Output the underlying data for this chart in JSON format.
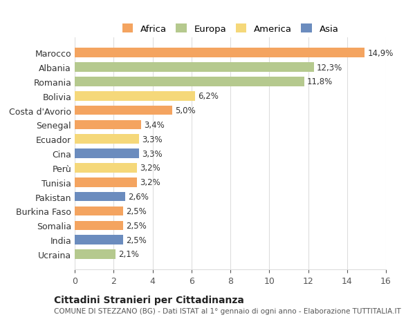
{
  "countries": [
    "Marocco",
    "Albania",
    "Romania",
    "Bolivia",
    "Costa d'Avorio",
    "Senegal",
    "Ecuador",
    "Cina",
    "Perù",
    "Tunisia",
    "Pakistan",
    "Burkina Faso",
    "Somalia",
    "India",
    "Ucraina"
  ],
  "values": [
    14.9,
    12.3,
    11.8,
    6.2,
    5.0,
    3.4,
    3.3,
    3.3,
    3.2,
    3.2,
    2.6,
    2.5,
    2.5,
    2.5,
    2.1
  ],
  "labels": [
    "14,9%",
    "12,3%",
    "11,8%",
    "6,2%",
    "5,0%",
    "3,4%",
    "3,3%",
    "3,3%",
    "3,2%",
    "3,2%",
    "2,6%",
    "2,5%",
    "2,5%",
    "2,5%",
    "2,1%"
  ],
  "continents": [
    "Africa",
    "Europa",
    "Europa",
    "America",
    "Africa",
    "Africa",
    "America",
    "Asia",
    "America",
    "Africa",
    "Asia",
    "Africa",
    "Africa",
    "Asia",
    "Europa"
  ],
  "colors": {
    "Africa": "#F4A460",
    "Europa": "#B5C98E",
    "America": "#F5D87A",
    "Asia": "#6B8CBE"
  },
  "legend_entries": [
    "Africa",
    "Europa",
    "America",
    "Asia"
  ],
  "title": "Cittadini Stranieri per Cittadinanza",
  "subtitle": "COMUNE DI STEZZANO (BG) - Dati ISTAT al 1° gennaio di ogni anno - Elaborazione TUTTITALIA.IT",
  "xlim": [
    0,
    16
  ],
  "xticks": [
    0,
    2,
    4,
    6,
    8,
    10,
    12,
    14,
    16
  ],
  "bg_color": "#ffffff",
  "grid_color": "#dddddd"
}
